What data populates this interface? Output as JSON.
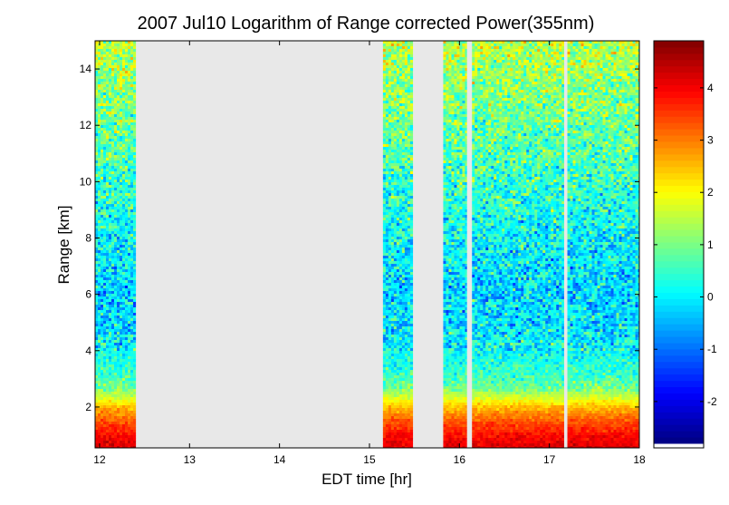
{
  "chart_data": {
    "type": "heatmap",
    "title": "2007 Jul10  Logarithm of Range corrected Power(355nm)",
    "xlabel": "EDT time [hr]",
    "ylabel": "Range [km]",
    "xlim": [
      11.95,
      18.0
    ],
    "ylim": [
      0.55,
      15.0
    ],
    "x_ticks": [
      "12",
      "13",
      "14",
      "15",
      "16",
      "17",
      "18"
    ],
    "y_ticks": [
      "2",
      "4",
      "6",
      "8",
      "10",
      "12",
      "14"
    ],
    "colorbar": {
      "clim": [
        -2.8,
        4.9
      ],
      "ticks": [
        "-2",
        "-1",
        "0",
        "1",
        "2",
        "3",
        "4"
      ],
      "colormap": "jet"
    },
    "data_segments": [
      {
        "x_start": 11.95,
        "x_end": 12.4
      },
      {
        "x_start": 15.15,
        "x_end": 15.48
      },
      {
        "x_start": 15.82,
        "x_end": 16.08
      },
      {
        "x_start": 16.14,
        "x_end": 17.16
      },
      {
        "x_start": 17.2,
        "x_end": 18.0
      }
    ],
    "profile": {
      "range_km": [
        0.55,
        1.0,
        1.5,
        2.0,
        2.3,
        2.6,
        3.0,
        4.0,
        5.0,
        6.0,
        8.0,
        10.0,
        12.0,
        15.0
      ],
      "log_power": [
        4.2,
        3.9,
        3.3,
        2.5,
        1.8,
        1.1,
        0.6,
        0.1,
        -0.1,
        -0.2,
        0.1,
        0.5,
        0.9,
        1.5
      ]
    },
    "gap_color": "#e8e8e8"
  }
}
